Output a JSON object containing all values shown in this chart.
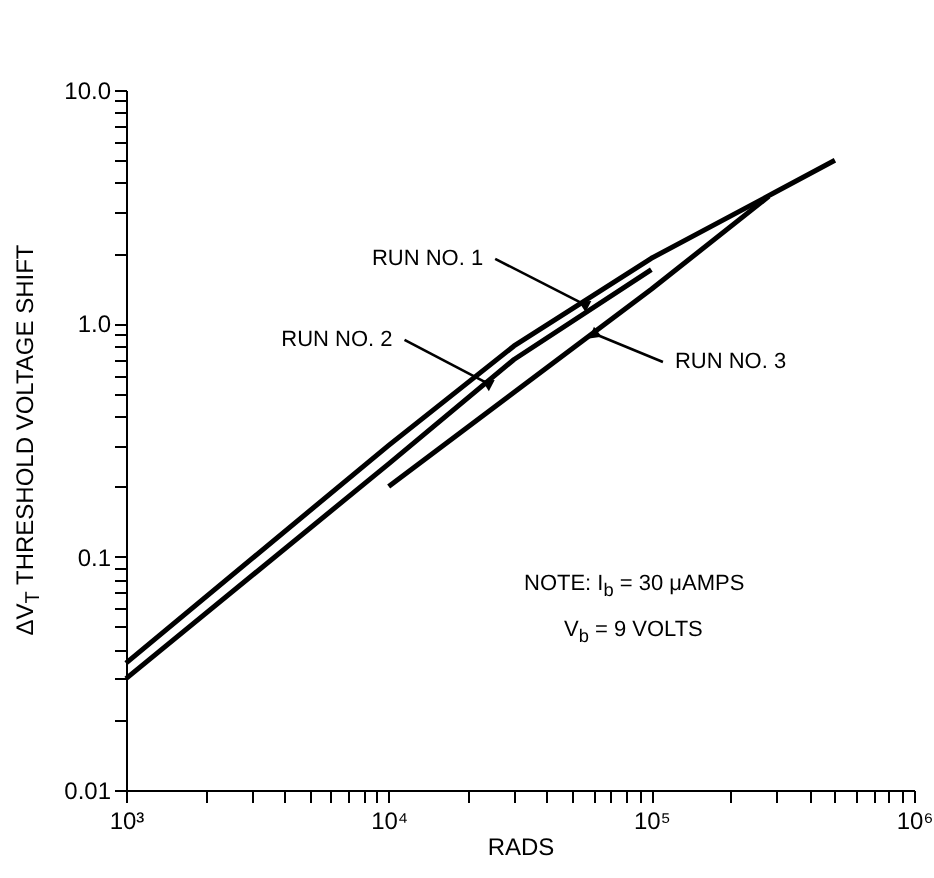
{
  "chart_data": {
    "type": "line",
    "xlabel": "RADS",
    "ylabel": "ΔV$_{T}$ THRESHOLD VOLTAGE SHIFT",
    "log": "xy",
    "grid": false,
    "legend": false,
    "line_style": "solid",
    "marker": "none",
    "xlim": [
      1000,
      1000000
    ],
    "xticks": [
      {
        "value": 1000,
        "label": "10³"
      },
      {
        "value": 2000,
        "label": null
      },
      {
        "value": 3000,
        "label": null
      },
      {
        "value": 4000,
        "label": null
      },
      {
        "value": 5000,
        "label": null
      },
      {
        "value": 6000,
        "label": null
      },
      {
        "value": 7000,
        "label": null
      },
      {
        "value": 8000,
        "label": null
      },
      {
        "value": 9000,
        "label": null
      },
      {
        "value": 10000,
        "label": "10⁴"
      },
      {
        "value": 20000,
        "label": null
      },
      {
        "value": 30000,
        "label": null
      },
      {
        "value": 40000,
        "label": null
      },
      {
        "value": 50000,
        "label": null
      },
      {
        "value": 60000,
        "label": null
      },
      {
        "value": 70000,
        "label": null
      },
      {
        "value": 80000,
        "label": null
      },
      {
        "value": 90000,
        "label": null
      },
      {
        "value": 100000,
        "label": "10⁵"
      },
      {
        "value": 200000,
        "label": null
      },
      {
        "value": 300000,
        "label": null
      },
      {
        "value": 400000,
        "label": null
      },
      {
        "value": 500000,
        "label": null
      },
      {
        "value": 600000,
        "label": null
      },
      {
        "value": 700000,
        "label": null
      },
      {
        "value": 800000,
        "label": null
      },
      {
        "value": 900000,
        "label": null
      },
      {
        "value": 1000000,
        "label": "10⁶"
      }
    ],
    "ylim": [
      0.01,
      10
    ],
    "yticks": [
      0.01,
      {
        "value": 0.02,
        "label": null
      },
      {
        "value": 0.03,
        "label": null
      },
      {
        "value": 0.04,
        "label": null
      },
      {
        "value": 0.05,
        "label": null
      },
      {
        "value": 0.06,
        "label": null
      },
      {
        "value": 0.07,
        "label": null
      },
      {
        "value": 0.08,
        "label": null
      },
      {
        "value": 0.09,
        "label": null
      },
      0.1,
      {
        "value": 0.2,
        "label": null
      },
      {
        "value": 0.3,
        "label": null
      },
      {
        "value": 0.4,
        "label": null
      },
      {
        "value": 0.5,
        "label": null
      },
      {
        "value": 0.6,
        "label": null
      },
      {
        "value": 0.7,
        "label": null
      },
      {
        "value": 0.8,
        "label": null
      },
      {
        "value": 0.9,
        "label": null
      },
      {
        "value": 1,
        "label": "1.0"
      },
      {
        "value": 2,
        "label": null
      },
      {
        "value": 3,
        "label": null
      },
      {
        "value": 4,
        "label": null
      },
      {
        "value": 5,
        "label": null
      },
      {
        "value": 6,
        "label": null
      },
      {
        "value": 7,
        "label": null
      },
      {
        "value": 8,
        "label": null
      },
      {
        "value": 9,
        "label": null
      },
      {
        "value": 10,
        "label": "10.0"
      }
    ],
    "series": [
      {
        "color": "#000000",
        "x": [
          1000,
          10000,
          30000,
          100000,
          290000,
          500000
        ],
        "values": [
          0.035,
          0.3,
          0.8,
          1.9,
          3.6,
          5.0
        ]
      },
      {
        "color": "#000000",
        "x": [
          1000,
          10000,
          30000,
          100000
        ],
        "values": [
          0.03,
          0.25,
          0.7,
          1.7
        ]
      },
      {
        "color": "#000000",
        "x": [
          10000,
          100000,
          280000
        ],
        "values": [
          0.2,
          1.4,
          3.5
        ]
      }
    ],
    "annotations": [
      {
        "text": "RUN NO. 1",
        "x": 56000,
        "y": 1.2
      },
      {
        "text": "RUN NO. 2",
        "x": 24000,
        "y": 0.55
      },
      {
        "text": "RUN NO. 3",
        "x": 61000,
        "y": 0.9
      },
      "NOTE: I$_{b}$ = 30 μAMPS",
      "V$_{b}$ = 9 VOLTS"
    ]
  }
}
